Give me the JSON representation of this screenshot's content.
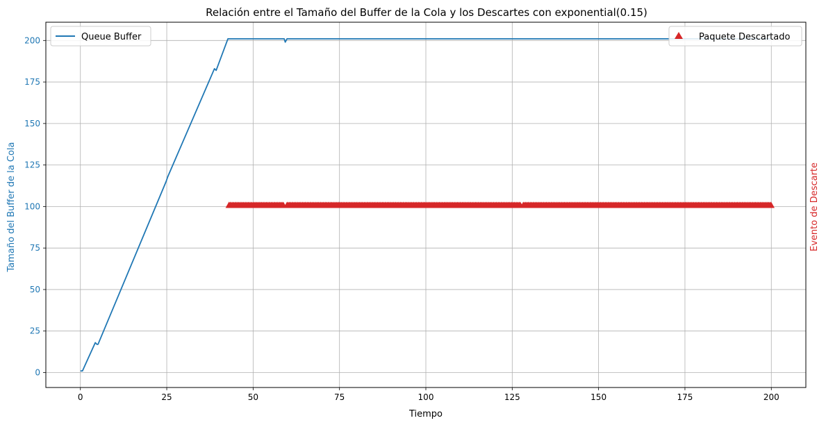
{
  "chart_data": {
    "type": "line",
    "title": "Relación entre el Tamaño del Buffer de la Cola y los Descartes con exponential(0.15)",
    "xlabel": "Tiempo",
    "ylabel_left": "Tamaño del Buffer de la Cola",
    "ylabel_right": "Evento de Descarte",
    "xlim": [
      -10,
      210
    ],
    "ylim": [
      -9,
      211
    ],
    "x_ticks": [
      0,
      25,
      50,
      75,
      100,
      125,
      150,
      175,
      200
    ],
    "y_ticks": [
      0,
      25,
      50,
      75,
      100,
      125,
      150,
      175,
      200
    ],
    "grid": true,
    "colors": {
      "buffer": "#1f77b4",
      "drops": "#d62728"
    },
    "series": [
      {
        "name": "Queue Buffer",
        "kind": "line",
        "legend_position": "upper left",
        "x": [
          0,
          0.6,
          4.3,
          4.8,
          5.1,
          24.8,
          25.3,
          38.8,
          39.3,
          42.7,
          59.0,
          59.3,
          59.8,
          200
        ],
        "y": [
          1,
          1,
          18,
          17,
          17,
          115,
          118,
          183,
          182,
          201,
          201,
          199,
          201,
          201
        ]
      },
      {
        "name": "Paquete Descartado",
        "kind": "scatter",
        "marker": "triangle-up",
        "legend_position": "upper right",
        "y_value": 100,
        "x_ranges": [
          [
            43.0,
            59.0
          ],
          [
            59.8,
            127.6
          ],
          [
            128.2,
            200
          ]
        ],
        "step": 0.35
      }
    ]
  }
}
